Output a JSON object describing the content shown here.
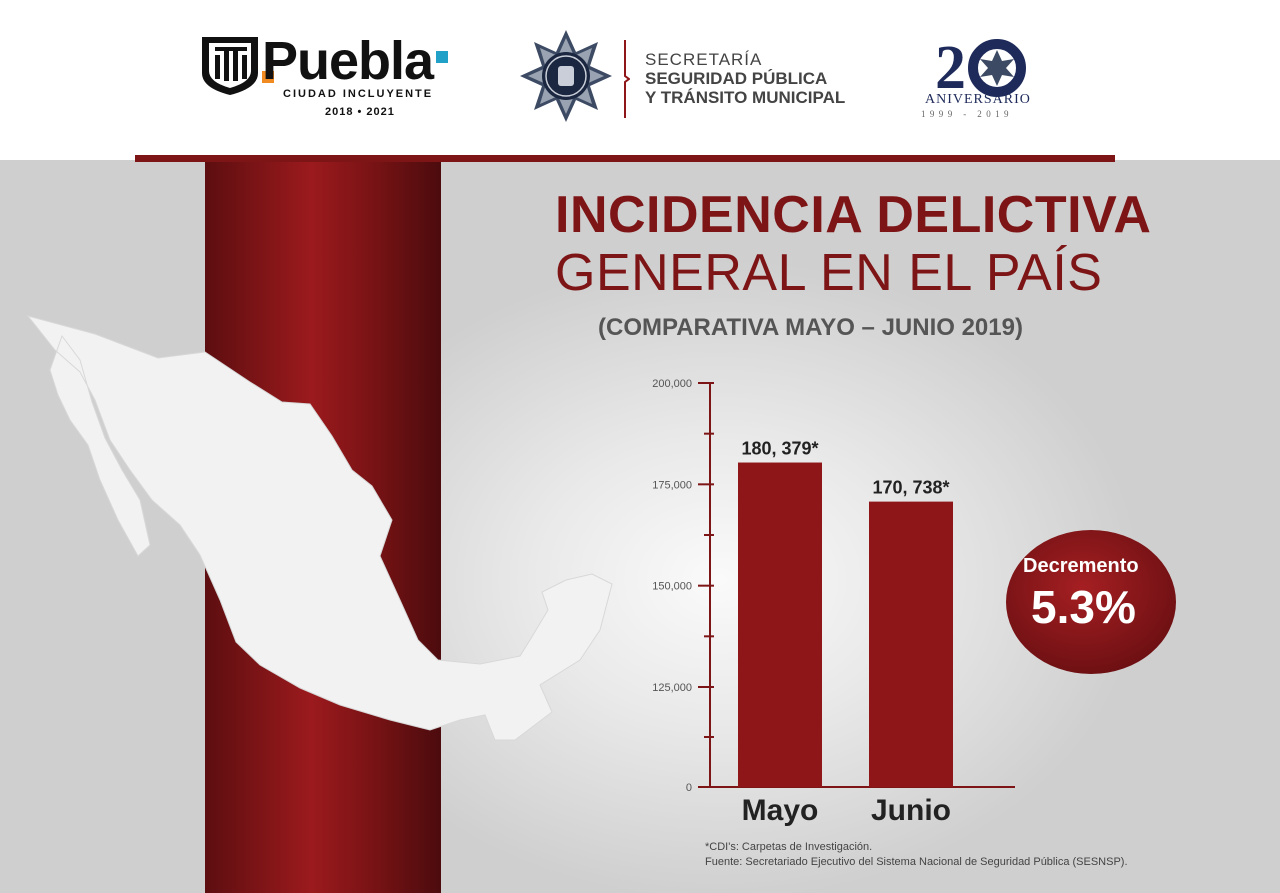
{
  "header": {
    "puebla": {
      "word": "Puebla",
      "tagline": "CIUDAD INCLUYENTE",
      "years": "2018 • 2021"
    },
    "secretaria": {
      "line1": "SECRETARÍA",
      "line2": "SEGURIDAD PÚBLICA",
      "line3": "Y TRÁNSITO MUNICIPAL"
    },
    "anniversary": {
      "word": "ANIVERSARIO",
      "years": "1999 - 2019"
    }
  },
  "colors": {
    "brand_red": "#7d1416",
    "bar_red": "#8e1619",
    "gray_text": "#555555"
  },
  "icons": [
    "puebla-logo-icon",
    "police-star-badge-icon",
    "anniversary-20-icon",
    "mexico-map-icon"
  ],
  "chart_data": {
    "type": "bar",
    "title": "INCIDENCIA DELICTIVA",
    "title_line2": "GENERAL EN EL PAÍS",
    "subtitle": "(COMPARATIVA MAYO – JUNIO 2019)",
    "categories": [
      "Mayo",
      "Junio"
    ],
    "values": [
      180379,
      170738
    ],
    "value_labels": [
      "180, 379*",
      "170, 738*"
    ],
    "y_ticks": [
      0,
      125000,
      150000,
      175000,
      200000
    ],
    "y_tick_labels": [
      "0",
      "125,000",
      "150,000",
      "175,000",
      "200,000"
    ],
    "y_axis_break": true,
    "ylim": [
      0,
      200000
    ],
    "xlabel": "",
    "ylabel": "",
    "grid": false,
    "annotation": {
      "label": "Decremento",
      "value": "5.3%"
    },
    "footnotes": [
      "*CDI's: Carpetas de Investigación.",
      "Fuente: Secretariado Ejecutivo del Sistema Nacional de Seguridad Pública (SESNSP)."
    ]
  }
}
